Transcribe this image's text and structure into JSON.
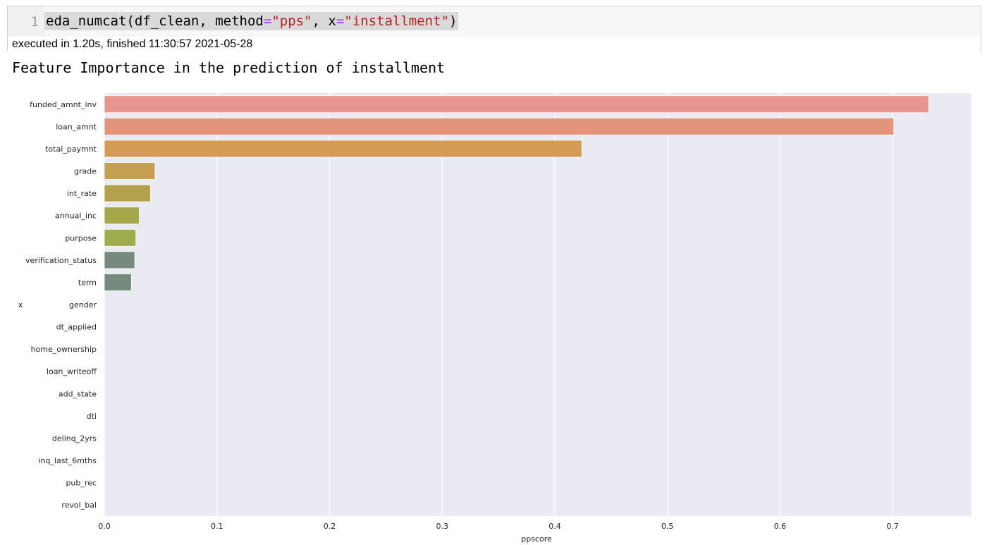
{
  "cell": {
    "line_number": "1",
    "code": {
      "func": "eda_numcat(df_clean, method",
      "eq1": "=",
      "arg1": "\"pps\"",
      "mid": ", x",
      "eq2": "=",
      "arg2": "\"installment\"",
      "close": ")"
    },
    "execution_info": "executed in 1.20s, finished 11:30:57 2021-05-28"
  },
  "output": {
    "title": "Feature Importance in the prediction of installment"
  },
  "chart_data": {
    "type": "bar",
    "orientation": "horizontal",
    "categories": [
      "funded_amnt_inv",
      "loan_amnt",
      "total_paymnt",
      "grade",
      "int_rate",
      "annual_inc",
      "purpose",
      "verification_status",
      "term",
      "gender",
      "dt_applied",
      "home_ownership",
      "loan_writeoff",
      "add_state",
      "dti",
      "delinq_2yrs",
      "inq_last_6mths",
      "pub_rec",
      "revol_bal"
    ],
    "values": [
      0.732,
      0.701,
      0.424,
      0.045,
      0.041,
      0.031,
      0.028,
      0.027,
      0.024,
      0,
      0,
      0,
      0,
      0,
      0,
      0,
      0,
      0,
      0
    ],
    "colors": [
      "#e8958f",
      "#e4947a",
      "#d49b57",
      "#c5a053",
      "#b3a24b",
      "#a4a84b",
      "#9eac4e",
      "#768a7e",
      "#768a7e",
      "#768a7e",
      "#768a7e",
      "#768a7e",
      "#768a7e",
      "#768a7e",
      "#768a7e",
      "#768a7e",
      "#768a7e",
      "#768a7e",
      "#768a7e"
    ],
    "xlabel": "ppscore",
    "ylabel": "x",
    "xlim": [
      0,
      0.77
    ],
    "xticks": [
      0.0,
      0.1,
      0.2,
      0.3,
      0.4,
      0.5,
      0.6,
      0.7
    ],
    "xtick_labels": [
      "0.0",
      "0.1",
      "0.2",
      "0.3",
      "0.4",
      "0.5",
      "0.6",
      "0.7"
    ],
    "background": "#eaeaf2",
    "grid": true
  }
}
